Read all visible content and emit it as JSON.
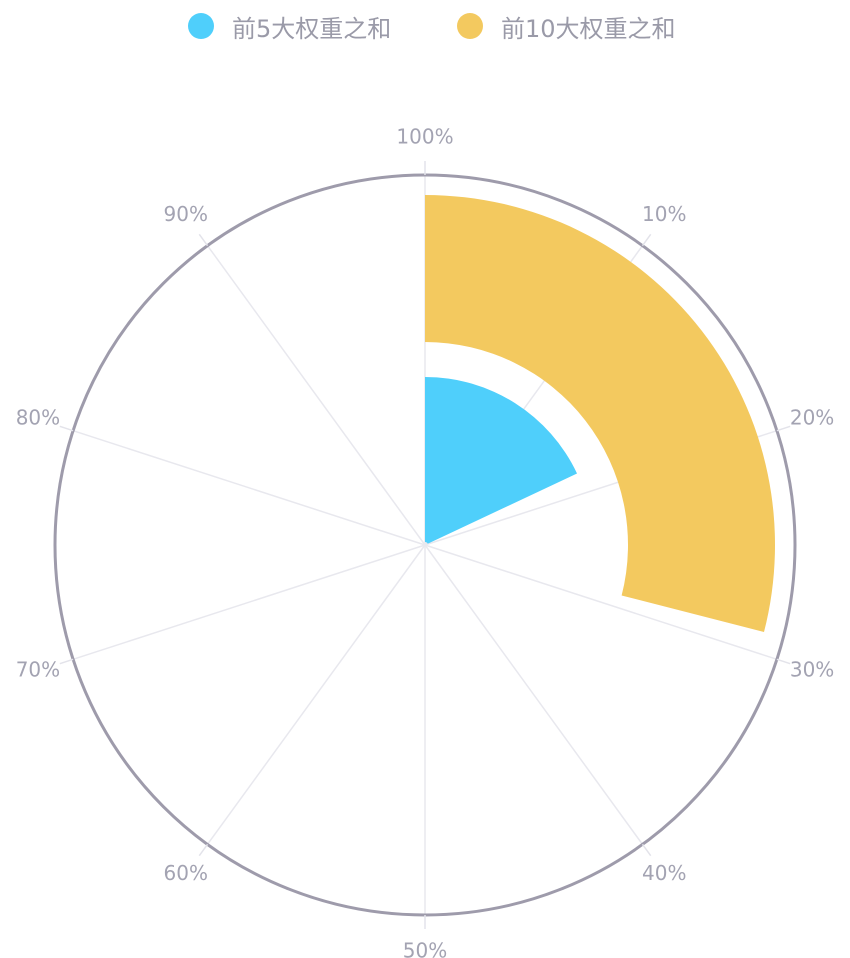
{
  "chart_data": {
    "type": "polar-bar",
    "angle_axis": {
      "min": 0,
      "max": 100,
      "tick_labels": [
        "100%",
        "10%",
        "20%",
        "30%",
        "40%",
        "50%",
        "60%",
        "70%",
        "80%",
        "90%"
      ]
    },
    "series": [
      {
        "name": "前5大权重之和",
        "value": 18,
        "color": "#4fcffb"
      },
      {
        "name": "前10大权重之和",
        "value": 29,
        "color": "#f3c95f"
      }
    ],
    "legend_position": "top-center",
    "grid": true
  }
}
